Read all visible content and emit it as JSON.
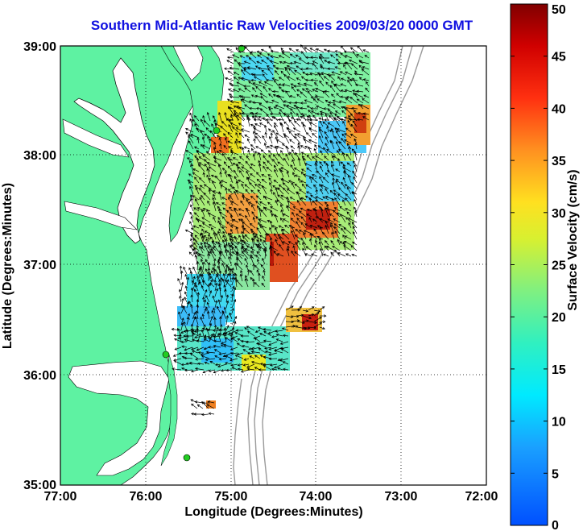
{
  "title": "Southern Mid-Atlantic Raw Velocities 2009/03/20 0000 GMT",
  "x_axis": {
    "label": "Longitude (Degrees:Minutes)",
    "ticks": [
      "77:00",
      "76:00",
      "75:00",
      "74:00",
      "73:00",
      "72:00"
    ]
  },
  "y_axis": {
    "label": "Latitude (Degrees:Minutes)",
    "ticks": [
      "39:00",
      "38:00",
      "37:00",
      "36:00",
      "35:00"
    ]
  },
  "colorbar": {
    "label": "Surface Velocity (cm/s)",
    "ticks": [
      "0",
      "5",
      "10",
      "15",
      "20",
      "25",
      "30",
      "35",
      "40",
      "45",
      "50"
    ],
    "min": 0,
    "max": 50
  },
  "colors": {
    "land": "#5ef2a2",
    "title": "#1010e0",
    "bathymetry": "#9a9a9a",
    "station": "#22cc22"
  }
}
